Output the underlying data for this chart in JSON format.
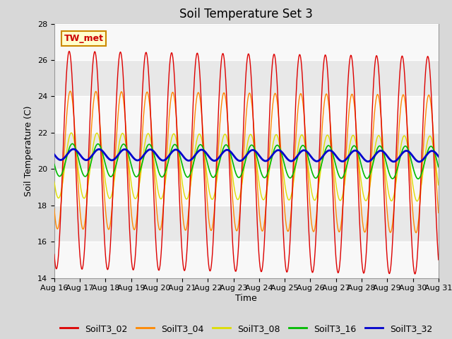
{
  "title": "Soil Temperature Set 3",
  "xlabel": "Time",
  "ylabel": "Soil Temperature (C)",
  "ylim": [
    14,
    28
  ],
  "yticks": [
    14,
    16,
    18,
    20,
    22,
    24,
    26,
    28
  ],
  "x_tick_labels": [
    "Aug 16",
    "Aug 17",
    "Aug 18",
    "Aug 19",
    "Aug 20",
    "Aug 21",
    "Aug 22",
    "Aug 23",
    "Aug 24",
    "Aug 25",
    "Aug 26",
    "Aug 27",
    "Aug 28",
    "Aug 29",
    "Aug 30",
    "Aug 31"
  ],
  "annotation_text": "TW_met",
  "annotation_color": "#cc0000",
  "annotation_bg": "#ffffcc",
  "annotation_border": "#cc8800",
  "line_colors": {
    "SoilT3_02": "#dd0000",
    "SoilT3_04": "#ff8800",
    "SoilT3_08": "#dddd00",
    "SoilT3_16": "#00bb00",
    "SoilT3_32": "#0000cc"
  },
  "legend_labels": [
    "SoilT3_02",
    "SoilT3_04",
    "SoilT3_08",
    "SoilT3_16",
    "SoilT3_32"
  ],
  "bg_color": "#d8d8d8",
  "plot_bg_color": "#e8e8e8",
  "white_band_alpha": 0.7,
  "title_fontsize": 12,
  "axis_label_fontsize": 9,
  "tick_fontsize": 8,
  "legend_fontsize": 9,
  "days": 15,
  "hours_per_day": 48,
  "base_02": 20.5,
  "trend_02": -0.02,
  "amp_02": 6.0,
  "base_04": 20.5,
  "trend_04": -0.015,
  "amp_04": 3.8,
  "base_08": 20.2,
  "trend_08": -0.012,
  "amp_08": 1.8,
  "base_16": 20.5,
  "trend_16": -0.01,
  "amp_16": 0.9,
  "base_32": 20.8,
  "trend_32": -0.007,
  "amp_32": 0.3
}
